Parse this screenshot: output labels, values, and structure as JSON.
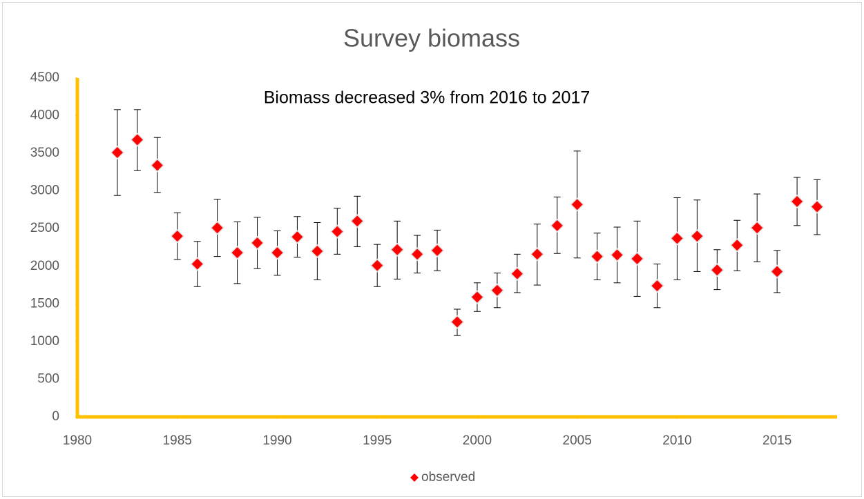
{
  "chart_data": {
    "type": "scatter",
    "title": "Survey biomass",
    "annotation": "Biomass decreased 3% from 2016 to 2017",
    "x": [
      1982,
      1983,
      1984,
      1985,
      1986,
      1987,
      1988,
      1989,
      1990,
      1991,
      1992,
      1993,
      1994,
      1995,
      1996,
      1997,
      1998,
      1999,
      2000,
      2001,
      2002,
      2003,
      2004,
      2005,
      2006,
      2007,
      2008,
      2009,
      2010,
      2011,
      2012,
      2013,
      2014,
      2015,
      2016,
      2017
    ],
    "series": [
      {
        "name": "observed",
        "color": "#ff0000",
        "values": [
          3510,
          3680,
          3340,
          2400,
          2030,
          2510,
          2180,
          2310,
          2180,
          2390,
          2200,
          2460,
          2600,
          2010,
          2220,
          2160,
          2210,
          1260,
          1590,
          1680,
          1900,
          2160,
          2540,
          2820,
          2130,
          2150,
          2100,
          1740,
          2370,
          2400,
          1950,
          2280,
          2510,
          1930,
          2860,
          2790
        ],
        "upper": [
          4080,
          4080,
          3710,
          2710,
          2330,
          2890,
          2590,
          2650,
          2470,
          2660,
          2580,
          2770,
          2930,
          2290,
          2600,
          2410,
          2480,
          1430,
          1780,
          1910,
          2160,
          2560,
          2920,
          3530,
          2440,
          2520,
          2600,
          2030,
          2910,
          2880,
          2220,
          2610,
          2960,
          2210,
          3180,
          3150
        ],
        "lower": [
          2940,
          3270,
          2980,
          2090,
          1730,
          2130,
          1770,
          1970,
          1880,
          2120,
          1820,
          2160,
          2260,
          1730,
          1830,
          1910,
          1940,
          1080,
          1400,
          1450,
          1650,
          1750,
          2170,
          2110,
          1820,
          1780,
          1600,
          1450,
          1820,
          1930,
          1690,
          1940,
          2060,
          1650,
          2540,
          2420
        ]
      }
    ],
    "xlim": [
      1980,
      2018
    ],
    "xticks": [
      1980,
      1985,
      1990,
      1995,
      2000,
      2005,
      2010,
      2015
    ],
    "ylim": [
      0,
      4500
    ],
    "yticks": [
      0,
      500,
      1000,
      1500,
      2000,
      2500,
      3000,
      3500,
      4000,
      4500
    ],
    "axis_color": "#ffc000",
    "legend": "bottom"
  }
}
